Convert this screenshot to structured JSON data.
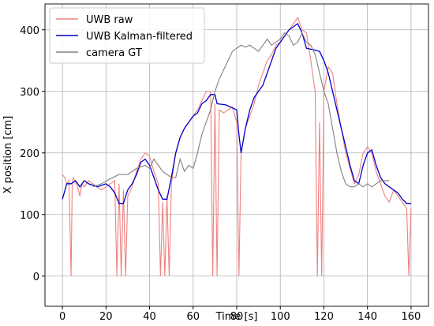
{
  "chart_data": {
    "type": "line",
    "xlabel": "Time [s]",
    "ylabel": "X position [cm]",
    "xlim": [
      -8,
      168
    ],
    "ylim": [
      -49,
      442
    ],
    "xticks": [
      0,
      20,
      40,
      60,
      80,
      100,
      120,
      140,
      160
    ],
    "yticks": [
      0,
      100,
      200,
      300,
      400
    ],
    "grid": true,
    "legend": "upper left",
    "series": [
      {
        "name": "UWB raw",
        "color": "#f08080",
        "x": [
          0,
          1,
          2,
          3,
          4,
          4.5,
          5,
          7,
          8,
          9,
          10,
          12,
          14,
          16,
          18,
          20,
          22,
          24,
          25,
          26,
          27,
          28,
          29,
          30,
          32,
          34,
          36,
          38,
          40,
          42,
          44,
          45,
          46,
          47,
          48,
          49,
          50,
          52,
          54,
          56,
          58,
          60,
          62,
          64,
          66,
          68,
          69,
          70,
          71,
          72,
          74,
          76,
          78,
          80,
          81,
          82,
          84,
          86,
          88,
          90,
          92,
          94,
          96,
          98,
          100,
          102,
          104,
          106,
          108,
          110,
          112,
          114,
          116,
          117,
          118,
          119,
          120,
          122,
          124,
          126,
          128,
          130,
          132,
          134,
          136,
          138,
          140,
          142,
          144,
          146,
          148,
          150,
          152,
          154,
          156,
          158,
          159,
          160
        ],
        "values": [
          165,
          160,
          150,
          155,
          0,
          150,
          160,
          145,
          130,
          150,
          145,
          155,
          150,
          145,
          140,
          145,
          150,
          155,
          0,
          150,
          0,
          140,
          0,
          130,
          145,
          170,
          190,
          200,
          195,
          170,
          150,
          0,
          120,
          0,
          130,
          0,
          150,
          200,
          225,
          240,
          250,
          260,
          270,
          285,
          300,
          300,
          0,
          280,
          0,
          270,
          265,
          270,
          275,
          250,
          0,
          200,
          240,
          260,
          280,
          310,
          330,
          350,
          360,
          375,
          380,
          390,
          400,
          410,
          420,
          400,
          395,
          350,
          300,
          0,
          250,
          0,
          300,
          340,
          330,
          280,
          240,
          200,
          175,
          150,
          165,
          200,
          210,
          200,
          170,
          150,
          130,
          120,
          140,
          130,
          120,
          110,
          0,
          110
        ]
      },
      {
        "name": "UWB Kalman-filtered",
        "color": "#0000cc",
        "x": [
          0,
          2,
          4,
          6,
          8,
          10,
          12,
          16,
          20,
          22,
          24,
          26,
          28,
          30,
          32,
          34,
          36,
          38,
          40,
          42,
          44,
          46,
          48,
          50,
          52,
          54,
          56,
          58,
          60,
          62,
          64,
          66,
          68,
          70,
          71,
          75,
          80,
          81,
          82,
          84,
          86,
          88,
          90,
          92,
          94,
          96,
          98,
          100,
          102,
          104,
          106,
          108,
          110,
          112,
          116,
          118,
          120,
          122,
          124,
          126,
          128,
          130,
          132,
          134,
          136,
          138,
          140,
          142,
          144,
          146,
          148,
          150,
          152,
          154,
          156,
          158,
          160
        ],
        "values": [
          125,
          150,
          150,
          155,
          145,
          155,
          150,
          145,
          150,
          145,
          135,
          118,
          118,
          140,
          150,
          165,
          185,
          190,
          180,
          160,
          140,
          125,
          125,
          160,
          200,
          225,
          240,
          250,
          260,
          265,
          280,
          285,
          295,
          295,
          280,
          278,
          270,
          230,
          200,
          240,
          270,
          290,
          300,
          310,
          330,
          350,
          370,
          380,
          390,
          400,
          405,
          410,
          395,
          370,
          367,
          365,
          350,
          330,
          300,
          270,
          240,
          210,
          180,
          155,
          150,
          180,
          200,
          205,
          180,
          160,
          150,
          145,
          140,
          135,
          125,
          118,
          118
        ]
      },
      {
        "name": "camera GT",
        "color": "#808080",
        "x": [
          14,
          18,
          22,
          26,
          30,
          34,
          38,
          40,
          42,
          44,
          46,
          48,
          50,
          52,
          54,
          56,
          58,
          60,
          62,
          64,
          66,
          68,
          70,
          72,
          74,
          76,
          78,
          80,
          82,
          84,
          86,
          88,
          90,
          92,
          94,
          96,
          98,
          100,
          102,
          104,
          106,
          108,
          110,
          112,
          114,
          116,
          118,
          120,
          122,
          124,
          126,
          128,
          130,
          132,
          134,
          136,
          138,
          140,
          142,
          144,
          146,
          148,
          150
        ],
        "values": [
          145,
          150,
          158,
          165,
          165,
          175,
          180,
          175,
          190,
          180,
          170,
          165,
          160,
          160,
          190,
          170,
          180,
          175,
          200,
          230,
          250,
          270,
          300,
          320,
          335,
          350,
          365,
          370,
          375,
          372,
          375,
          370,
          365,
          375,
          385,
          375,
          380,
          385,
          395,
          390,
          375,
          380,
          395,
          380,
          375,
          360,
          330,
          300,
          280,
          240,
          200,
          170,
          150,
          145,
          145,
          150,
          145,
          150,
          145,
          150,
          155,
          155,
          155
        ]
      }
    ]
  }
}
